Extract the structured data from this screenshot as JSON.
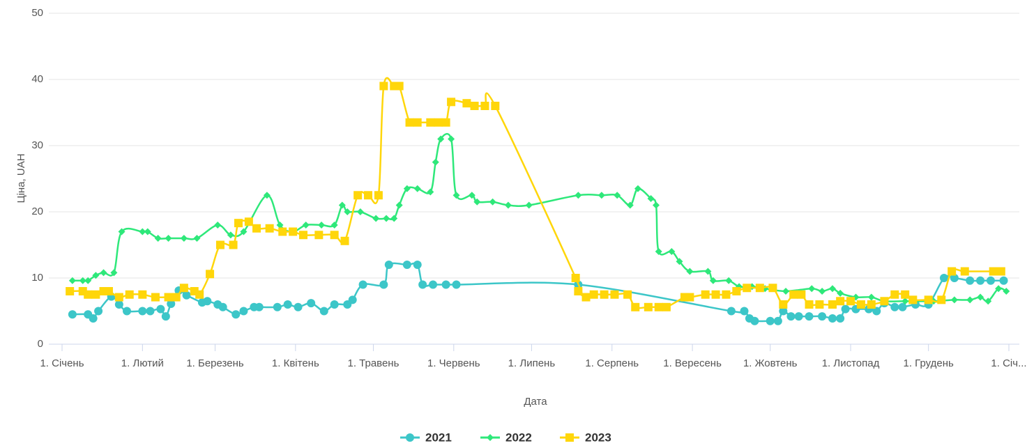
{
  "chart_data": {
    "type": "line",
    "xlabel": "Дата",
    "ylabel": "Ціна, UAH",
    "xlim": [
      0,
      365
    ],
    "ylim": [
      0,
      50
    ],
    "yticks": [
      0,
      10,
      20,
      30,
      40,
      50
    ],
    "xticks": [
      {
        "value": 0,
        "label": "1. Січень"
      },
      {
        "value": 31,
        "label": "1. Лютий"
      },
      {
        "value": 59,
        "label": "1. Березень"
      },
      {
        "value": 90,
        "label": "1. Квітень"
      },
      {
        "value": 120,
        "label": "1. Травень"
      },
      {
        "value": 151,
        "label": "1. Червень"
      },
      {
        "value": 181,
        "label": "1. Липень"
      },
      {
        "value": 212,
        "label": "1. Серпень"
      },
      {
        "value": 243,
        "label": "1. Вересень"
      },
      {
        "value": 273,
        "label": "1. Жовтень"
      },
      {
        "value": 304,
        "label": "1. Листопад"
      },
      {
        "value": 334,
        "label": "1. Грудень"
      },
      {
        "value": 365,
        "label": "1. Січ..."
      }
    ],
    "grid": true,
    "legend": "bottom",
    "series": [
      {
        "name": "2021",
        "color": "#3cc6c8",
        "marker": "circle",
        "x": [
          4,
          10,
          12,
          14,
          19,
          22,
          25,
          31,
          34,
          38,
          40,
          42,
          45,
          48,
          54,
          56,
          60,
          62,
          67,
          70,
          74,
          76,
          83,
          87,
          91,
          96,
          101,
          105,
          110,
          112,
          116,
          124,
          126,
          133,
          137,
          139,
          143,
          148,
          152,
          199,
          258,
          263,
          265,
          267,
          273,
          276,
          278,
          281,
          284,
          288,
          293,
          297,
          300,
          302,
          306,
          311,
          314,
          317,
          321,
          324,
          329,
          334,
          340,
          344,
          350,
          354,
          358,
          363
        ],
        "values": [
          4.5,
          4.5,
          3.9,
          5,
          7.2,
          6,
          5,
          5,
          5,
          5.3,
          4.2,
          6.1,
          8.1,
          7.4,
          6.3,
          6.5,
          6,
          5.6,
          4.5,
          5,
          5.6,
          5.6,
          5.6,
          6,
          5.6,
          6.2,
          5,
          6,
          6,
          6.7,
          9,
          9,
          12,
          12,
          12,
          9,
          9,
          9,
          9,
          9,
          5,
          5,
          3.9,
          3.5,
          3.5,
          3.5,
          5,
          4.2,
          4.2,
          4.2,
          4.2,
          3.9,
          3.9,
          5.3,
          5.3,
          5.3,
          5,
          6.2,
          5.6,
          5.6,
          6,
          6,
          10,
          10,
          9.6,
          9.6,
          9.6,
          9.6
        ]
      },
      {
        "name": "2022",
        "color": "#2ee87a",
        "marker": "diamond",
        "x": [
          4,
          8,
          10,
          13,
          16,
          20,
          23,
          31,
          33,
          37,
          41,
          47,
          52,
          60,
          65,
          70,
          79,
          84,
          89,
          94,
          100,
          105,
          108,
          110,
          115,
          121,
          125,
          128,
          130,
          133,
          137,
          142,
          144,
          146,
          150,
          152,
          158,
          160,
          166,
          172,
          180,
          199,
          208,
          214,
          219,
          222,
          227,
          229,
          230,
          235,
          238,
          242,
          249,
          251,
          257,
          261,
          266,
          271,
          279,
          289,
          293,
          297,
          300,
          306,
          312,
          317,
          325,
          336,
          344,
          350,
          354,
          357,
          361,
          364
        ],
        "values": [
          9.6,
          9.6,
          9.6,
          10.4,
          10.8,
          10.8,
          17,
          17,
          17,
          16,
          16,
          16,
          16,
          18,
          16.5,
          17,
          22.5,
          18,
          17,
          18,
          18,
          18,
          21,
          20,
          20,
          19,
          19,
          19,
          21,
          23.5,
          23.5,
          23,
          27.5,
          31,
          31,
          22.5,
          22.5,
          21.5,
          21.5,
          21,
          21,
          22.5,
          22.5,
          22.5,
          21,
          23.5,
          22,
          21,
          14,
          14,
          12.5,
          11,
          11,
          9.6,
          9.6,
          8.7,
          8.7,
          8.4,
          8,
          8.4,
          8,
          8.4,
          7.7,
          7.1,
          7.1,
          6.5,
          6.5,
          6.5,
          6.7,
          6.7,
          7.1,
          6.5,
          8.4,
          8
        ]
      },
      {
        "name": "2023",
        "color": "#ffd60a",
        "marker": "square",
        "x": [
          3,
          8,
          10,
          13,
          16,
          18,
          22,
          26,
          31,
          36,
          41,
          44,
          47,
          51,
          53,
          57,
          61,
          66,
          68,
          72,
          75,
          80,
          85,
          89,
          93,
          99,
          105,
          109,
          114,
          118,
          122,
          124,
          128,
          130,
          134,
          137,
          142,
          145,
          148,
          150,
          156,
          159,
          163,
          167,
          198,
          199,
          202,
          205,
          209,
          213,
          218,
          221,
          226,
          230,
          233,
          240,
          242,
          248,
          252,
          256,
          260,
          264,
          269,
          274,
          278,
          282,
          285,
          288,
          292,
          297,
          300,
          304,
          308,
          312,
          317,
          321,
          325,
          328,
          334,
          339,
          343,
          348,
          359,
          362
        ],
        "values": [
          8,
          8,
          7.5,
          7.5,
          8,
          8,
          7.1,
          7.5,
          7.5,
          7.1,
          7.1,
          7.1,
          8.5,
          8,
          7.5,
          10.6,
          15,
          15,
          18.3,
          18.5,
          17.5,
          17.5,
          17,
          17,
          16.5,
          16.5,
          16.5,
          15.6,
          22.5,
          22.5,
          22.5,
          39,
          39,
          39,
          33.5,
          33.5,
          33.5,
          33.5,
          33.5,
          36.6,
          36.4,
          36,
          36,
          36,
          10,
          8,
          7.1,
          7.5,
          7.5,
          7.5,
          7.5,
          5.6,
          5.6,
          5.6,
          5.6,
          7.1,
          7.1,
          7.5,
          7.5,
          7.5,
          8,
          8.5,
          8.5,
          8.5,
          6,
          7.5,
          7.5,
          6,
          6,
          6,
          6.5,
          6.5,
          6,
          6,
          6.5,
          7.5,
          7.5,
          6.7,
          6.7,
          6.7,
          11,
          11,
          11,
          11
        ]
      }
    ]
  }
}
